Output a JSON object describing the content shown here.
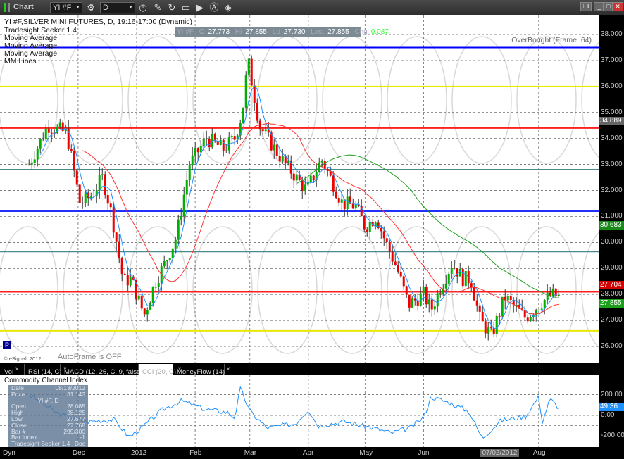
{
  "window": {
    "title": "Chart",
    "symbol": "YI #F",
    "interval": "D",
    "buttons": [
      "min",
      "max",
      "close"
    ]
  },
  "toolbar_icons": [
    "link-icon",
    "pencil-icon",
    "refresh-icon",
    "quote-icon",
    "play-icon",
    "alert-icon",
    "eraser-icon"
  ],
  "legend": {
    "title": "YI #F,SILVER MINI FUTURES, D, 19:16-17:00 (Dynamic)",
    "items": [
      "Tradesight Seeker 1.4",
      "Moving Average",
      "Moving Average",
      "Moving Average",
      "MM Lines"
    ],
    "overbought": "OverBought (Frame: 64)",
    "copyright": "© eSignal, 2012",
    "autoframe": "AutoFrame is OFF",
    "p_badge": "P"
  },
  "quote": {
    "sym": "YI #F",
    "o_label": "O",
    "o": "27.773",
    "hi_label": "Hi",
    "hi": "27.855",
    "lo_label": "Lo",
    "lo": "27.730",
    "last_label": "Last",
    "last": "27.855",
    "chg_label": "Chg",
    "chg": "0.087"
  },
  "price_axis": {
    "ticks": [
      "38.000",
      "37.000",
      "36.000",
      "35.000",
      "34.000",
      "33.000",
      "32.000",
      "31.000",
      "30.000",
      "29.000",
      "28.000",
      "27.000",
      "26.000"
    ],
    "tags": [
      {
        "v": "34.889",
        "c": "#666666",
        "p": 34.889
      },
      {
        "v": "30.683",
        "c": "#1a8a1a",
        "p": 30.683
      },
      {
        "v": "27.855",
        "c": "#1aa01a",
        "p": 27.855
      },
      {
        "v": "27.704",
        "c": "#d00000",
        "p": 27.64
      }
    ]
  },
  "mm_lines": [
    {
      "p": 37.5,
      "c": "#0000ff"
    },
    {
      "p": 36.0,
      "c": "#e8e800"
    },
    {
      "p": 34.4,
      "c": "#ff2020"
    },
    {
      "p": 32.8,
      "c": "#4a8a8a"
    },
    {
      "p": 31.2,
      "c": "#2030ff"
    },
    {
      "p": 29.65,
      "c": "#4a8a8a"
    },
    {
      "p": 28.1,
      "c": "#ff2020"
    },
    {
      "p": 26.6,
      "c": "#e8e800"
    }
  ],
  "chart_data": {
    "type": "candlestick",
    "ylim": [
      25.6,
      38.4
    ],
    "x": [
      "2011-11-05",
      "2011-11-15",
      "2011-11-25",
      "2011-12-02",
      "2011-12-08",
      "2011-12-14",
      "2011-12-19",
      "2011-12-25",
      "2011-12-29",
      "2012-01-05",
      "2012-01-11",
      "2012-01-16",
      "2012-01-22",
      "2012-01-29",
      "2012-02-07",
      "2012-02-16",
      "2012-02-22",
      "2012-02-26",
      "2012-02-29",
      "2012-03-06",
      "2012-03-15",
      "2012-03-20",
      "2012-03-31",
      "2012-04-04",
      "2012-04-08",
      "2012-04-19",
      "2012-04-26",
      "2012-05-01",
      "2012-05-07",
      "2012-05-12",
      "2012-05-18",
      "2012-05-24",
      "2012-06-01",
      "2012-06-05",
      "2012-06-09",
      "2012-06-16",
      "2012-06-22",
      "2012-06-26",
      "2012-07-01",
      "2012-07-07",
      "2012-07-14",
      "2012-07-25",
      "2012-08-01",
      "2012-08-08",
      "2012-08-13"
    ],
    "close": [
      33.0,
      34.5,
      34.2,
      31.5,
      31.8,
      32.5,
      31.0,
      28.5,
      28.6,
      27.2,
      28.5,
      29.2,
      30.2,
      33.0,
      34.0,
      33.6,
      34.0,
      35.0,
      37.0,
      34.5,
      33.5,
      33.0,
      32.0,
      32.6,
      33.2,
      31.5,
      31.4,
      30.6,
      31.0,
      30.0,
      29.0,
      27.6,
      28.0,
      27.4,
      28.1,
      29.2,
      28.6,
      28.6,
      27.0,
      26.4,
      27.9,
      27.1,
      27.6,
      28.0,
      27.855
    ]
  },
  "cci": {
    "title": "Commodity Channel Index",
    "ticks": [
      "200.00",
      "0.00",
      "-200.00"
    ],
    "value": "49.36",
    "x": [
      "2011-11-05",
      "2011-11-20",
      "2011-12-05",
      "2011-12-20",
      "2011-12-28",
      "2012-01-05",
      "2012-01-15",
      "2012-01-25",
      "2012-02-06",
      "2012-02-18",
      "2012-02-22",
      "2012-02-25",
      "2012-03-01",
      "2012-03-10",
      "2012-03-25",
      "2012-04-01",
      "2012-04-06",
      "2012-04-20",
      "2012-05-05",
      "2012-05-15",
      "2012-05-25",
      "2012-06-01",
      "2012-06-05",
      "2012-06-15",
      "2012-06-25",
      "2012-07-02",
      "2012-07-12",
      "2012-07-25",
      "2012-08-01",
      "2012-08-03",
      "2012-08-07",
      "2012-08-13"
    ],
    "values": [
      200,
      20,
      -60,
      -40,
      -210,
      -100,
      60,
      140,
      60,
      30,
      -20,
      260,
      40,
      -120,
      -80,
      60,
      -100,
      -60,
      -120,
      -170,
      -120,
      -20,
      180,
      120,
      40,
      -220,
      -50,
      -10,
      180,
      -60,
      160,
      49
    ]
  },
  "tabs": [
    {
      "label": "Vol"
    },
    {
      "label": "RSI (14, C)"
    },
    {
      "label": "MACD (12, 26, C, 9, false, true)"
    },
    {
      "label": "CCI (20, C)"
    },
    {
      "label": "MoneyFlow (14)"
    }
  ],
  "xaxis": {
    "labels": [
      {
        "t": "Dec",
        "d": "2011-12-01"
      },
      {
        "t": "2012",
        "d": "2012-01-01"
      },
      {
        "t": "Feb",
        "d": "2012-02-01"
      },
      {
        "t": "Mar",
        "d": "2012-03-01"
      },
      {
        "t": "Apr",
        "d": "2012-04-01"
      },
      {
        "t": "May",
        "d": "2012-05-01"
      },
      {
        "t": "Jun",
        "d": "2012-06-01"
      },
      {
        "t": "07/02/2012",
        "d": "2012-07-02"
      },
      {
        "t": "Aug",
        "d": "2012-08-01"
      }
    ],
    "left": "Dyn"
  },
  "data_window": {
    "header": "YI #F, D",
    "rows": [
      [
        "Date",
        "08/13/2012"
      ],
      [
        "Price",
        "31.143"
      ],
      [
        "Open",
        "28.085"
      ],
      [
        "High",
        "28.125"
      ],
      [
        "Low",
        "27.677"
      ],
      [
        "Close",
        "27.768"
      ],
      [
        "Bar #",
        "299/300"
      ],
      [
        "Bar Index",
        "-1"
      ]
    ],
    "footer": "Tradesight Seeker 1.4",
    "footer_right": "Doc"
  }
}
